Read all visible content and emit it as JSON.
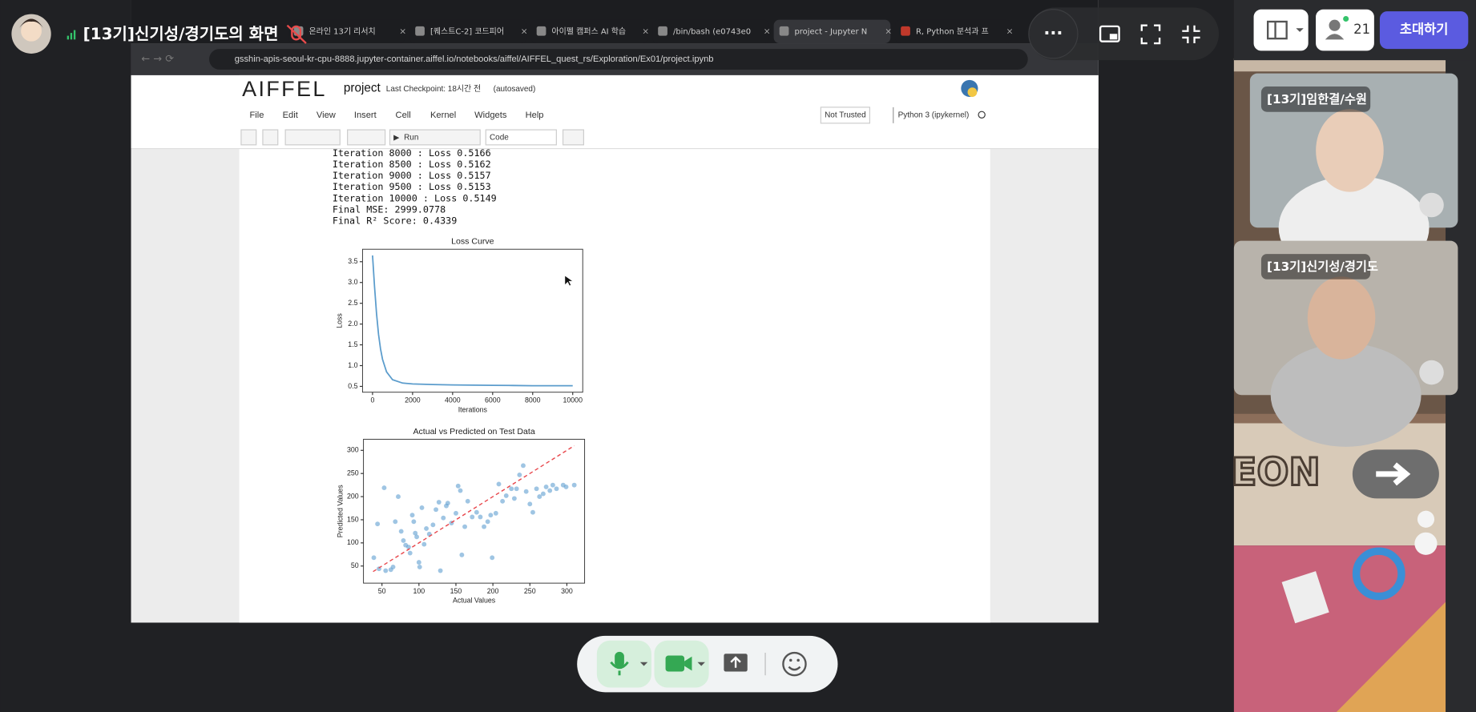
{
  "call": {
    "presenter_title": "[13기]신기성/경기도의 화면",
    "participant_count": 21,
    "invite_button": "초대하기"
  },
  "participants": [
    {
      "name": "[13기]임한결/수원"
    },
    {
      "name": "[13기]신기성/경기도"
    }
  ],
  "game_sign": "EON",
  "browser": {
    "tabs": [
      "온라인 13기 리서치",
      "[퀘스트C-2] 코드피어",
      "아이펠 캠퍼스 AI 학습",
      "/bin/bash (e0743e0",
      "project - Jupyter N",
      "R, Python 분석과 프"
    ],
    "active_tab": 4,
    "url": "gsshin-apis-seoul-kr-cpu-8888.jupyter-container.aiffel.io/notebooks/aiffel/AIFFEL_quest_rs/Exploration/Ex01/project.ipynb"
  },
  "notebook": {
    "logo": "AIFFEL",
    "name": "project",
    "checkpoint": "Last Checkpoint: 18시간 전",
    "autosave": "(autosaved)",
    "menu": [
      "File",
      "Edit",
      "View",
      "Insert",
      "Cell",
      "Kernel",
      "Widgets",
      "Help"
    ],
    "trust": "Not Trusted",
    "kernel": "Python 3 (ipykernel)",
    "run_button": "Run",
    "cell_type": "Code",
    "output_lines": [
      "Iteration 8000 : Loss 0.5166",
      "Iteration 8500 : Loss 0.5162",
      "Iteration 9000 : Loss 0.5157",
      "Iteration 9500 : Loss 0.5153",
      "Iteration 10000 : Loss 0.5149",
      "Final MSE: 2999.0778",
      "Final R² Score: 0.4339"
    ]
  },
  "chart_data": [
    {
      "type": "line",
      "title": "Loss Curve",
      "x_label": "Iterations",
      "y_label": "Loss",
      "color": "#5b9ccc",
      "x": [
        0,
        100,
        200,
        300,
        400,
        500,
        700,
        1000,
        1500,
        2000,
        3000,
        4000,
        5000,
        6000,
        7000,
        8000,
        8500,
        9000,
        9500,
        10000
      ],
      "values": [
        3.65,
        2.9,
        2.25,
        1.75,
        1.4,
        1.15,
        0.85,
        0.66,
        0.58,
        0.56,
        0.545,
        0.535,
        0.53,
        0.525,
        0.522,
        0.5166,
        0.5162,
        0.5157,
        0.5153,
        0.5149
      ],
      "xlim": [
        -500,
        10500
      ],
      "ylim": [
        0.36,
        3.8
      ],
      "xticks": [
        0,
        2000,
        4000,
        6000,
        8000,
        10000
      ],
      "yticks": [
        0.5,
        {
          "value": 1,
          "label": "1.0"
        },
        1.5,
        {
          "value": 2,
          "label": "2.0"
        },
        2.5,
        {
          "value": 3,
          "label": "3.0"
        },
        3.5
      ]
    },
    {
      "type": "scatter",
      "title": "Actual vs Predicted on Test Data",
      "x_label": "Actual Values",
      "y_label": "Predicted Values",
      "color": "#5f9fd0",
      "x": [
        39,
        44,
        53,
        46,
        55,
        62,
        65,
        68,
        72,
        76,
        79,
        82,
        86,
        88,
        91,
        93,
        95,
        97,
        100,
        101,
        104,
        107,
        110,
        114,
        119,
        123,
        127,
        129,
        133,
        137,
        139,
        144,
        150,
        153,
        156,
        158,
        162,
        166,
        172,
        178,
        183,
        188,
        193,
        197,
        199,
        204,
        208,
        213,
        218,
        225,
        229,
        232,
        236,
        241,
        245,
        250,
        254,
        259,
        263,
        268,
        272,
        277,
        281,
        286,
        295,
        299,
        310
      ],
      "values": [
        68,
        141,
        219,
        44,
        40,
        42,
        48,
        146,
        200,
        125,
        105,
        95,
        91,
        78,
        160,
        146,
        121,
        113,
        58,
        48,
        176,
        97,
        131,
        119,
        139,
        172,
        188,
        40,
        154,
        180,
        186,
        143,
        164,
        223,
        213,
        74,
        135,
        190,
        156,
        166,
        156,
        135,
        146,
        160,
        68,
        164,
        227,
        190,
        202,
        217,
        196,
        217,
        247,
        267,
        211,
        184,
        166,
        217,
        200,
        206,
        221,
        213,
        225,
        217,
        225,
        221,
        225
      ],
      "xlim": [
        25,
        324
      ],
      "ylim": [
        13,
        324
      ],
      "xticks": [
        50,
        100,
        150,
        200,
        250,
        300
      ],
      "yticks": [
        50,
        100,
        150,
        200,
        250,
        300
      ],
      "reference_line": {
        "x": [
          38,
          310
        ],
        "y": [
          38,
          310
        ],
        "color": "#e8474c",
        "dashed": true
      }
    }
  ]
}
